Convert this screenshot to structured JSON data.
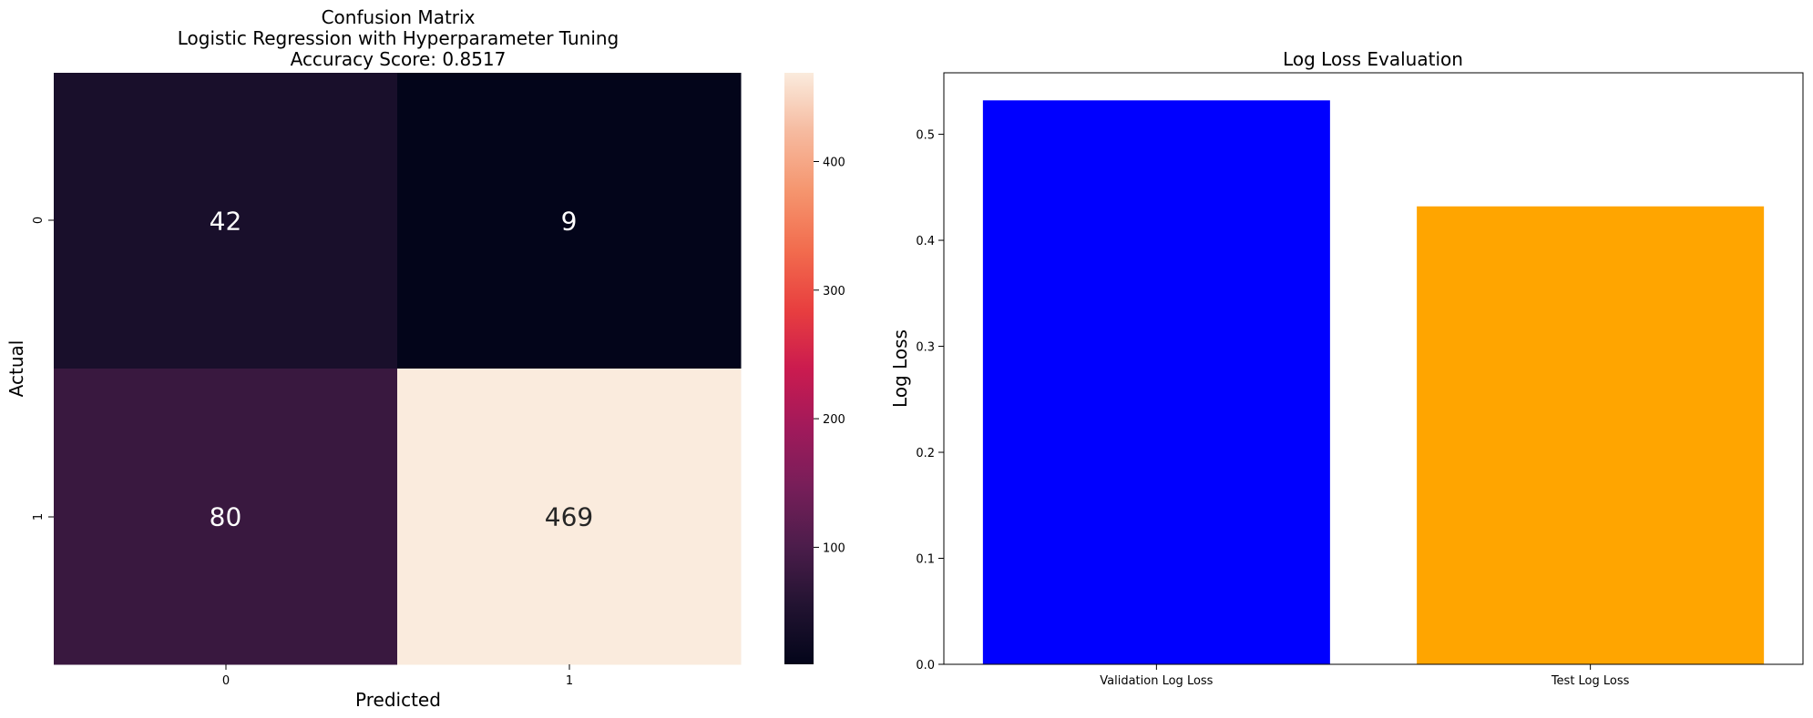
{
  "chart_data": [
    {
      "type": "heatmap",
      "title_lines": [
        "Confusion Matrix",
        "Logistic Regression with Hyperparameter Tuning",
        "Accuracy Score: 0.8517"
      ],
      "xlabel": "Predicted",
      "ylabel": "Actual",
      "x_categories": [
        "0",
        "1"
      ],
      "y_categories": [
        "0",
        "1"
      ],
      "values": [
        [
          42,
          9
        ],
        [
          80,
          469
        ]
      ],
      "colorbar": {
        "colormap": "rocket",
        "range": [
          9,
          469
        ],
        "ticks": [
          100,
          200,
          300,
          400
        ],
        "tick_labels": [
          "100",
          "200",
          "300",
          "400"
        ]
      }
    },
    {
      "type": "bar",
      "title": "Log Loss Evaluation",
      "xlabel": "",
      "ylabel": "Log Loss",
      "categories": [
        "Validation Log Loss",
        "Test Log Loss"
      ],
      "values": [
        0.532,
        0.432
      ],
      "colors": [
        "#0000ff",
        "#ffa500"
      ],
      "ylim": [
        0,
        0.558
      ],
      "yticks": [
        0.0,
        0.1,
        0.2,
        0.3,
        0.4,
        0.5
      ],
      "ytick_labels": [
        "0.0",
        "0.1",
        "0.2",
        "0.3",
        "0.4",
        "0.5"
      ],
      "grid": false
    }
  ]
}
